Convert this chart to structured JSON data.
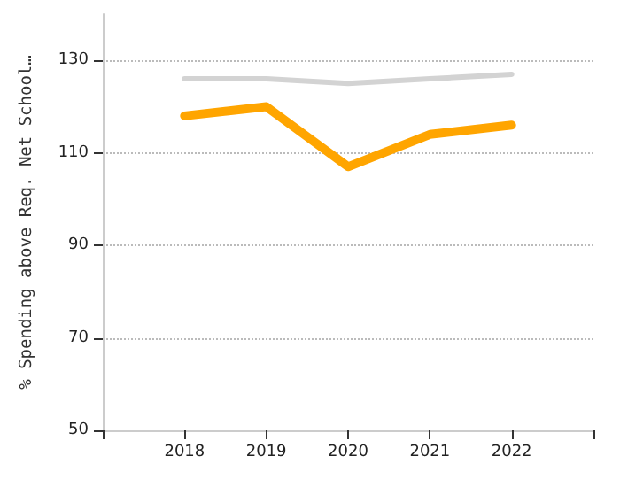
{
  "chart_data": {
    "type": "line",
    "ylabel": "% Spending above Req. Net School…",
    "categories": [
      null,
      "2018",
      "2019",
      "2020",
      "2021",
      "2022",
      null
    ],
    "series": [
      {
        "color": "#d3d3d3",
        "values": [
          null,
          126,
          126,
          125,
          126,
          127,
          null
        ]
      },
      {
        "color": "#ffa500",
        "values": [
          null,
          118,
          120,
          107,
          114,
          116,
          null
        ]
      }
    ],
    "ylim": [
      50,
      140
    ],
    "yticks": [
      50,
      70,
      90,
      110,
      130
    ],
    "grid": "y",
    "marker": "none",
    "line_style": "solid"
  }
}
